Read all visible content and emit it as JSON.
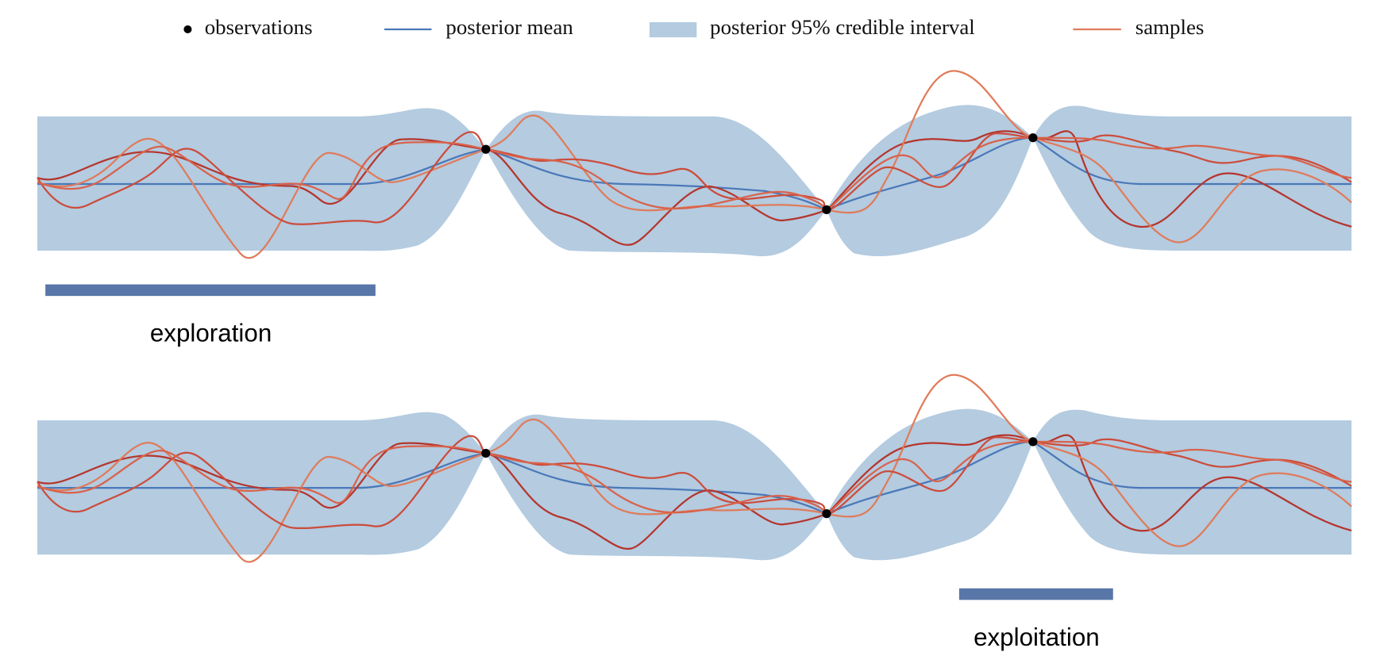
{
  "legend": [
    "observations",
    "posterior mean",
    "posterior 95% credible interval",
    "samples"
  ],
  "panels": [
    {
      "label": "exploration"
    },
    {
      "label": "exploitation"
    }
  ]
}
